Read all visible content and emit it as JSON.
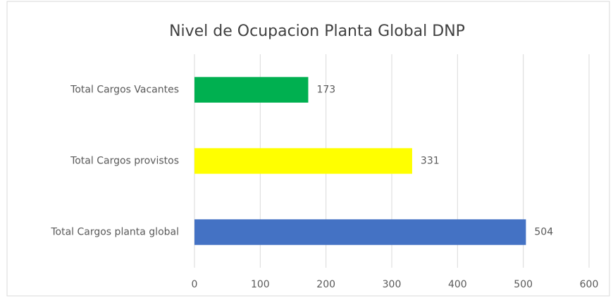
{
  "chart_data": {
    "type": "bar",
    "orientation": "horizontal",
    "title": "Nivel de Ocupacion Planta Global DNP",
    "categories": [
      "Total Cargos Vacantes",
      "Total Cargos provistos",
      "Total Cargos planta global"
    ],
    "values": [
      173,
      331,
      504
    ],
    "colors": [
      "#00b050",
      "#ffff00",
      "#4472c4"
    ],
    "xlim": [
      0,
      600
    ],
    "xticks": [
      0,
      100,
      200,
      300,
      400,
      500,
      600
    ],
    "grid": true
  }
}
